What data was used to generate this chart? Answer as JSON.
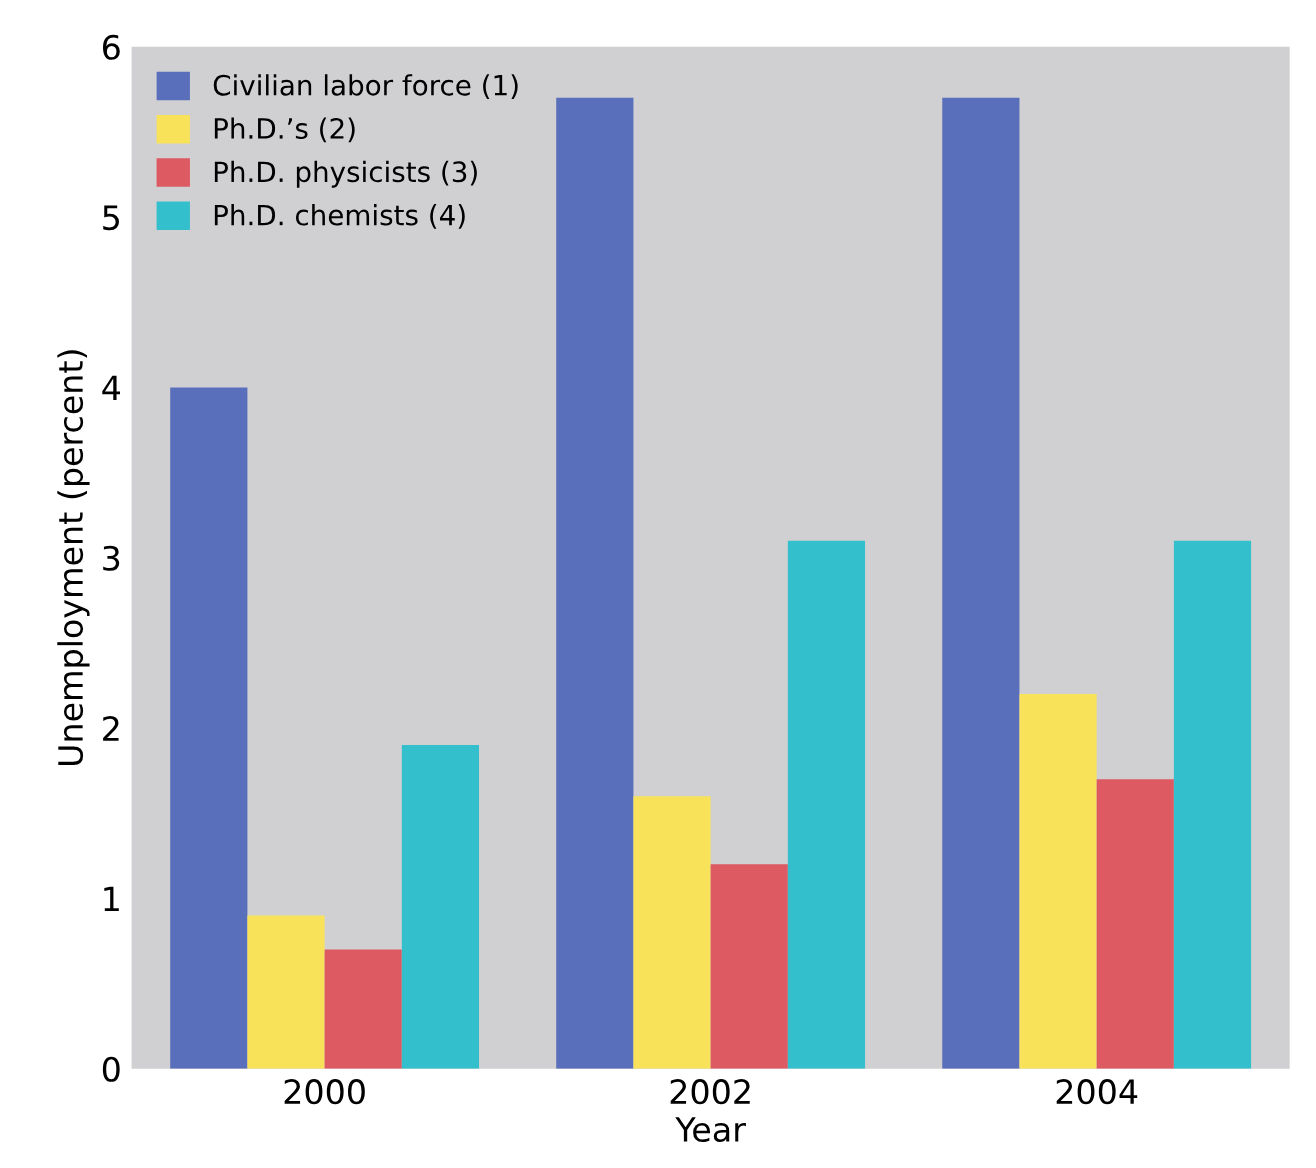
{
  "chart_data": {
    "type": "bar",
    "xlabel": "Year",
    "ylabel": "Unemployment (percent)",
    "categories": [
      "2000",
      "2002",
      "2004"
    ],
    "series": [
      {
        "name": "Civilian labor force (1)",
        "color": "#5a6fbb",
        "values": [
          4.0,
          5.7,
          5.7
        ]
      },
      {
        "name": "Ph.D.’s (2)",
        "color": "#f8e25a",
        "values": [
          0.9,
          1.6,
          2.2
        ]
      },
      {
        "name": "Ph.D. physicists (3)",
        "color": "#dd5a62",
        "values": [
          0.7,
          1.2,
          1.7
        ]
      },
      {
        "name": "Ph.D. chemists (4)",
        "color": "#33bfcc",
        "values": [
          1.9,
          3.1,
          3.1
        ]
      }
    ],
    "ylim": [
      0,
      6
    ],
    "yticks": [
      0,
      1,
      2,
      3,
      4,
      5,
      6
    ],
    "grid": false,
    "legend": "top left"
  }
}
